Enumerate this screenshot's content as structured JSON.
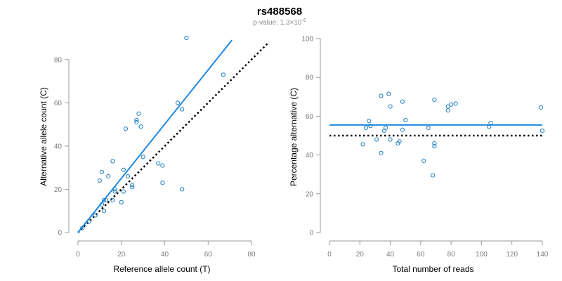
{
  "figure": {
    "title": "rs488568",
    "subtitle_prefix": "p-value: 1.3×10",
    "subtitle_exponent": "-6"
  },
  "colors": {
    "primary": "#1f88e0",
    "points": "#1f7fbf",
    "reference_line": "#000000",
    "axis": "#9a9a9a",
    "tick_label": "#7a7a7a"
  },
  "chart_data": [
    {
      "type": "scatter",
      "xlabel": "Reference allele count (T)",
      "ylabel": "Alternative allele count (C)",
      "xlim": [
        0,
        80
      ],
      "ylim": [
        0,
        90
      ],
      "xticks": [
        0,
        20,
        40,
        60,
        80
      ],
      "yticks": [
        0,
        20,
        40,
        60,
        80
      ],
      "points": [
        {
          "x": 2,
          "y": 2
        },
        {
          "x": 5,
          "y": 5
        },
        {
          "x": 8,
          "y": 8
        },
        {
          "x": 10,
          "y": 24
        },
        {
          "x": 11,
          "y": 28
        },
        {
          "x": 11,
          "y": 13
        },
        {
          "x": 12,
          "y": 10
        },
        {
          "x": 12,
          "y": 15
        },
        {
          "x": 13,
          "y": 15
        },
        {
          "x": 14,
          "y": 26
        },
        {
          "x": 16,
          "y": 33
        },
        {
          "x": 16,
          "y": 15
        },
        {
          "x": 17,
          "y": 19
        },
        {
          "x": 17,
          "y": 20
        },
        {
          "x": 20,
          "y": 14
        },
        {
          "x": 21,
          "y": 29
        },
        {
          "x": 21,
          "y": 19
        },
        {
          "x": 22,
          "y": 48
        },
        {
          "x": 23,
          "y": 26
        },
        {
          "x": 25,
          "y": 21
        },
        {
          "x": 25,
          "y": 22
        },
        {
          "x": 27,
          "y": 51
        },
        {
          "x": 27,
          "y": 52
        },
        {
          "x": 28,
          "y": 55
        },
        {
          "x": 29,
          "y": 49
        },
        {
          "x": 30,
          "y": 35
        },
        {
          "x": 37,
          "y": 32
        },
        {
          "x": 39,
          "y": 31
        },
        {
          "x": 39,
          "y": 23
        },
        {
          "x": 46,
          "y": 60
        },
        {
          "x": 48,
          "y": 57
        },
        {
          "x": 48,
          "y": 20
        },
        {
          "x": 50,
          "y": 90
        },
        {
          "x": 67,
          "y": 73
        }
      ],
      "fit_line": {
        "x": [
          0,
          71
        ],
        "y": [
          0,
          89
        ]
      },
      "reference_line": {
        "x": [
          0,
          88
        ],
        "y": [
          0,
          88
        ]
      }
    },
    {
      "type": "scatter",
      "xlabel": "Total number of reads",
      "ylabel": "Percentage alternative (C)",
      "xlim": [
        0,
        140
      ],
      "ylim": [
        0,
        100
      ],
      "xticks": [
        0,
        20,
        40,
        60,
        80,
        100,
        120,
        140
      ],
      "yticks": [
        0,
        20,
        40,
        60,
        80,
        100
      ],
      "points": [
        {
          "x": 22,
          "y": 45.5
        },
        {
          "x": 24,
          "y": 54
        },
        {
          "x": 26,
          "y": 57.5
        },
        {
          "x": 27,
          "y": 55
        },
        {
          "x": 31,
          "y": 48
        },
        {
          "x": 34,
          "y": 70.5
        },
        {
          "x": 34,
          "y": 41
        },
        {
          "x": 36,
          "y": 52.5
        },
        {
          "x": 37,
          "y": 54
        },
        {
          "x": 39,
          "y": 71.5
        },
        {
          "x": 40,
          "y": 65
        },
        {
          "x": 40,
          "y": 48
        },
        {
          "x": 45,
          "y": 46
        },
        {
          "x": 46,
          "y": 47
        },
        {
          "x": 48,
          "y": 67.5
        },
        {
          "x": 48,
          "y": 53
        },
        {
          "x": 50,
          "y": 58
        },
        {
          "x": 62,
          "y": 37
        },
        {
          "x": 65,
          "y": 54
        },
        {
          "x": 68,
          "y": 29.5
        },
        {
          "x": 69,
          "y": 46
        },
        {
          "x": 69,
          "y": 44.5
        },
        {
          "x": 69,
          "y": 68.5
        },
        {
          "x": 78,
          "y": 65
        },
        {
          "x": 78,
          "y": 63
        },
        {
          "x": 80,
          "y": 66
        },
        {
          "x": 83,
          "y": 66.5
        },
        {
          "x": 105,
          "y": 54.5
        },
        {
          "x": 106,
          "y": 56.5
        },
        {
          "x": 139,
          "y": 64.5
        },
        {
          "x": 140,
          "y": 52.5
        }
      ],
      "fit_line": {
        "x": [
          0,
          140
        ],
        "y": [
          55.5,
          55.5
        ]
      },
      "reference_line": {
        "x": [
          0,
          140
        ],
        "y": [
          50,
          50
        ]
      }
    }
  ]
}
